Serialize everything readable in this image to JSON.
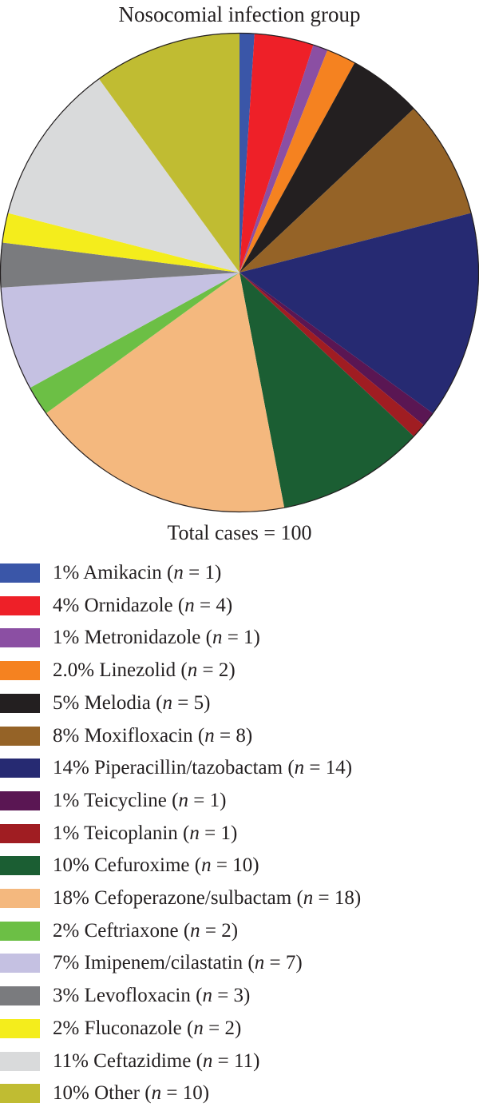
{
  "chart_data": {
    "type": "pie",
    "title": "Nosocomial infection group",
    "total_label": "Total cases = 100",
    "slices": [
      {
        "pct": "1%",
        "name": "Amikacin",
        "n": "1",
        "value": 1,
        "color": "#3a56a8"
      },
      {
        "pct": "4%",
        "name": "Ornidazole",
        "n": "4",
        "value": 4,
        "color": "#ee2028"
      },
      {
        "pct": "1%",
        "name": "Metronidazole",
        "n": "1",
        "value": 1,
        "color": "#8b4fa3"
      },
      {
        "pct": "2.0%",
        "name": "Linezolid",
        "n": "2",
        "value": 2,
        "color": "#f58220"
      },
      {
        "pct": "5%",
        "name": "Melodia",
        "n": "5",
        "value": 5,
        "color": "#231f20"
      },
      {
        "pct": "8%",
        "name": "Moxifloxacin",
        "n": "8",
        "value": 8,
        "color": "#956327"
      },
      {
        "pct": "14%",
        "name": "Piperacillin/tazobactam",
        "n": "14",
        "value": 14,
        "color": "#262a72"
      },
      {
        "pct": "1%",
        "name": "Teicycline",
        "n": "1",
        "value": 1,
        "color": "#5a1653"
      },
      {
        "pct": "1%",
        "name": "Teicoplanin",
        "n": "1",
        "value": 1,
        "color": "#a01d22"
      },
      {
        "pct": "10%",
        "name": "Cefuroxime",
        "n": "10",
        "value": 10,
        "color": "#1b5e33"
      },
      {
        "pct": "18%",
        "name": "Cefoperazone/sulbactam",
        "n": "18",
        "value": 18,
        "color": "#f4b87e"
      },
      {
        "pct": "2%",
        "name": "Ceftriaxone",
        "n": "2",
        "value": 2,
        "color": "#6cbf45"
      },
      {
        "pct": "7%",
        "name": "Imipenem/cilastatin",
        "n": "7",
        "value": 7,
        "color": "#c5c1e2"
      },
      {
        "pct": "3%",
        "name": "Levofloxacin",
        "n": "3",
        "value": 3,
        "color": "#7a7b7e"
      },
      {
        "pct": "2%",
        "name": "Fluconazole",
        "n": "2",
        "value": 2,
        "color": "#f4ed1c"
      },
      {
        "pct": "11%",
        "name": "Ceftazidime",
        "n": "11",
        "value": 11,
        "color": "#d9dadb"
      },
      {
        "pct": "10%",
        "name": "Other",
        "n": "10",
        "value": 10,
        "color": "#c0bc32"
      }
    ]
  }
}
